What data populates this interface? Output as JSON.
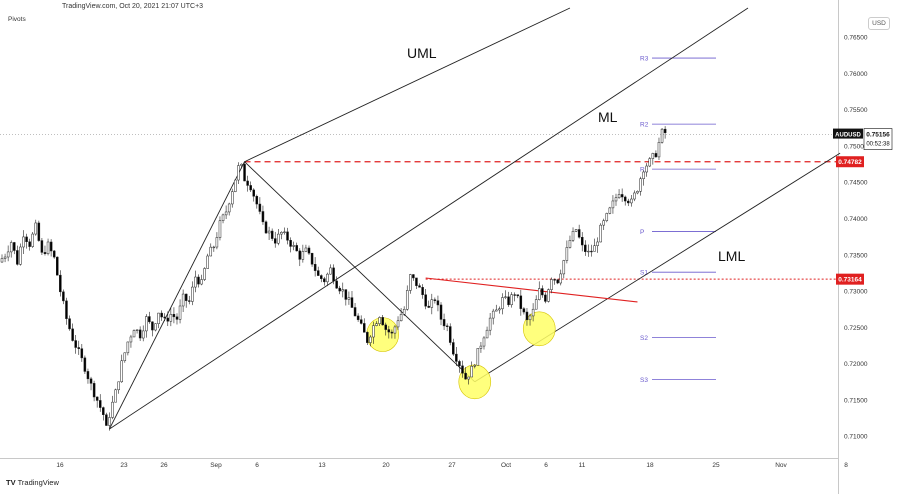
{
  "header": {
    "source": "TradingView.com, Oct 20, 2021 21:07 UTC+3",
    "indicator": "Pivots",
    "currency": "USD"
  },
  "footer": {
    "logo_mark": "TV",
    "brand": "TradingView"
  },
  "colors": {
    "candle_up": "#2f2f2f",
    "candle_down": "#000000",
    "channel": "#222222",
    "level_red": "#e02020",
    "pivot": "#6a5acd",
    "marker": "#ffff66"
  },
  "chart_data": {
    "type": "candlestick",
    "symbol": "AUDUSD",
    "last_price": "0.75156",
    "countdown": "00:52:38",
    "ylim": [
      0.707,
      0.769
    ],
    "y_ticks": [
      "0.76500",
      "0.76000",
      "0.75500",
      "0.75000",
      "0.74500",
      "0.74000",
      "0.73500",
      "0.73000",
      "0.72500",
      "0.72000",
      "0.71500",
      "0.71000"
    ],
    "x_ticks": [
      "16",
      "23",
      "26",
      "Sep",
      "6",
      "13",
      "20",
      "27",
      "Oct",
      "6",
      "11",
      "18",
      "25",
      "Nov",
      "8"
    ],
    "price_tags": [
      {
        "value": "0.74782",
        "level": 0.74782
      },
      {
        "value": "0.73164",
        "level": 0.73164
      }
    ],
    "annotations": [
      "UML",
      "ML",
      "LML"
    ],
    "pivots": [
      {
        "name": "R3",
        "value": 0.7621
      },
      {
        "name": "R2",
        "value": 0.753
      },
      {
        "name": "R1",
        "value": 0.7468
      },
      {
        "name": "P",
        "value": 0.7382
      },
      {
        "name": "S1",
        "value": 0.7326
      },
      {
        "name": "S2",
        "value": 0.7236
      },
      {
        "name": "S3",
        "value": 0.7178
      }
    ],
    "trend_path": [
      [
        0,
        0.734
      ],
      [
        2,
        0.735
      ],
      [
        4,
        0.7368
      ],
      [
        6,
        0.734
      ],
      [
        8,
        0.738
      ],
      [
        10,
        0.7365
      ],
      [
        12,
        0.7388
      ],
      [
        14,
        0.735
      ],
      [
        16,
        0.7363
      ],
      [
        18,
        0.7345
      ],
      [
        20,
        0.73
      ],
      [
        22,
        0.7262
      ],
      [
        24,
        0.7235
      ],
      [
        26,
        0.7215
      ],
      [
        28,
        0.7195
      ],
      [
        30,
        0.717
      ],
      [
        32,
        0.715
      ],
      [
        34,
        0.713
      ],
      [
        35,
        0.711
      ],
      [
        36,
        0.713
      ],
      [
        38,
        0.716
      ],
      [
        40,
        0.72
      ],
      [
        42,
        0.723
      ],
      [
        44,
        0.725
      ],
      [
        46,
        0.724
      ],
      [
        48,
        0.7262
      ],
      [
        50,
        0.7248
      ],
      [
        52,
        0.7272
      ],
      [
        54,
        0.7258
      ],
      [
        56,
        0.7268
      ],
      [
        58,
        0.7262
      ],
      [
        60,
        0.729
      ],
      [
        62,
        0.7285
      ],
      [
        64,
        0.732
      ],
      [
        66,
        0.731
      ],
      [
        68,
        0.7348
      ],
      [
        70,
        0.7362
      ],
      [
        72,
        0.7392
      ],
      [
        74,
        0.741
      ],
      [
        76,
        0.744
      ],
      [
        78,
        0.747
      ],
      [
        79,
        0.747
      ],
      [
        80,
        0.7455
      ],
      [
        82,
        0.7445
      ],
      [
        84,
        0.742
      ],
      [
        86,
        0.739
      ],
      [
        88,
        0.738
      ],
      [
        90,
        0.737
      ],
      [
        92,
        0.738
      ],
      [
        94,
        0.7372
      ],
      [
        96,
        0.736
      ],
      [
        98,
        0.7348
      ],
      [
        100,
        0.7355
      ],
      [
        102,
        0.734
      ],
      [
        104,
        0.732
      ],
      [
        106,
        0.7315
      ],
      [
        108,
        0.733
      ],
      [
        110,
        0.731
      ],
      [
        112,
        0.73
      ],
      [
        114,
        0.7285
      ],
      [
        116,
        0.7268
      ],
      [
        118,
        0.725
      ],
      [
        120,
        0.7232
      ],
      [
        122,
        0.7252
      ],
      [
        124,
        0.7268
      ],
      [
        126,
        0.7248
      ],
      [
        128,
        0.724
      ],
      [
        130,
        0.7262
      ],
      [
        132,
        0.7275
      ],
      [
        134,
        0.732
      ],
      [
        136,
        0.731
      ],
      [
        138,
        0.7295
      ],
      [
        140,
        0.7275
      ],
      [
        142,
        0.729
      ],
      [
        144,
        0.7262
      ],
      [
        146,
        0.725
      ],
      [
        148,
        0.7218
      ],
      [
        150,
        0.72
      ],
      [
        152,
        0.718
      ],
      [
        154,
        0.7192
      ],
      [
        156,
        0.7215
      ],
      [
        158,
        0.724
      ],
      [
        160,
        0.7262
      ],
      [
        162,
        0.7272
      ],
      [
        164,
        0.7288
      ],
      [
        166,
        0.7285
      ],
      [
        168,
        0.7298
      ],
      [
        170,
        0.7278
      ],
      [
        172,
        0.7258
      ],
      [
        174,
        0.7272
      ],
      [
        176,
        0.73
      ],
      [
        178,
        0.729
      ],
      [
        180,
        0.732
      ],
      [
        182,
        0.7315
      ],
      [
        184,
        0.7342
      ],
      [
        186,
        0.737
      ],
      [
        188,
        0.7385
      ],
      [
        190,
        0.736
      ],
      [
        192,
        0.7352
      ],
      [
        194,
        0.736
      ],
      [
        196,
        0.7385
      ],
      [
        198,
        0.7402
      ],
      [
        200,
        0.742
      ],
      [
        202,
        0.7438
      ],
      [
        204,
        0.743
      ],
      [
        206,
        0.7422
      ],
      [
        208,
        0.7442
      ],
      [
        210,
        0.747
      ],
      [
        212,
        0.7478
      ],
      [
        214,
        0.749
      ],
      [
        216,
        0.7518
      ]
    ],
    "lines": [
      {
        "name": "UML",
        "from": [
          79,
          0.74782
        ],
        "to": [
          185,
          0.769
        ]
      },
      {
        "name": "ML",
        "from": [
          35,
          0.711
        ],
        "to": [
          243,
          0.769
        ]
      },
      {
        "name": "LML",
        "from": [
          154,
          0.7175
        ],
        "to": [
          273,
          0.749
        ]
      },
      {
        "name": "fork-connector-1",
        "from": [
          35,
          0.711
        ],
        "to": [
          79,
          0.74782
        ]
      },
      {
        "name": "fork-connector-2",
        "from": [
          79,
          0.74782
        ],
        "to": [
          154,
          0.7175
        ]
      },
      {
        "name": "neckline",
        "from": [
          138,
          0.7318
        ],
        "to": [
          207,
          0.7285
        ]
      }
    ],
    "highlights": [
      {
        "name": "left-shoulder-marker",
        "cx": 124,
        "cy": 0.724
      },
      {
        "name": "head-marker",
        "cx": 154,
        "cy": 0.7175
      },
      {
        "name": "right-shoulder-marker",
        "cx": 175,
        "cy": 0.7248
      }
    ]
  }
}
